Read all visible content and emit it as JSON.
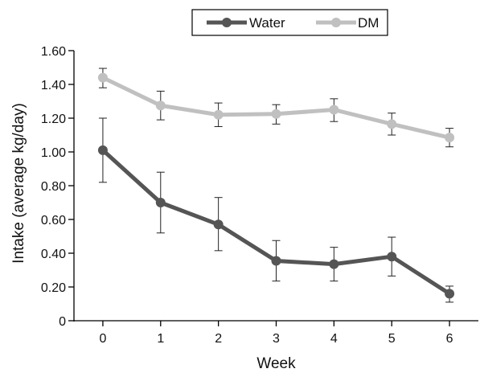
{
  "chart_data": {
    "type": "line",
    "title": "",
    "xlabel": "Week",
    "ylabel": "Intake (average kg/day)",
    "x": [
      0,
      1,
      2,
      3,
      4,
      5,
      6
    ],
    "x_tick_labels": [
      "0",
      "1",
      "2",
      "3",
      "4",
      "5",
      "6"
    ],
    "xlim": [
      -0.5,
      6.5
    ],
    "ylim": [
      0,
      1.6
    ],
    "y_ticks": [
      0,
      0.2,
      0.4,
      0.6,
      0.8,
      1.0,
      1.2,
      1.4,
      1.6
    ],
    "y_tick_labels": [
      "0",
      "0.20",
      "0.40",
      "0.60",
      "0.80",
      "1.00",
      "1.20",
      "1.40",
      "1.60"
    ],
    "grid": false,
    "legend_position": "top-center",
    "series": [
      {
        "name": "Water",
        "color": "#555555",
        "values": [
          1.01,
          0.7,
          0.57,
          0.355,
          0.335,
          0.38,
          0.16
        ],
        "error_upper": [
          1.2,
          0.88,
          0.73,
          0.475,
          0.435,
          0.495,
          0.205
        ],
        "error_lower": [
          0.82,
          0.52,
          0.415,
          0.235,
          0.235,
          0.265,
          0.11
        ]
      },
      {
        "name": "DM",
        "color": "#c0c0c0",
        "values": [
          1.44,
          1.275,
          1.22,
          1.225,
          1.25,
          1.165,
          1.085
        ],
        "error_upper": [
          1.495,
          1.36,
          1.29,
          1.28,
          1.315,
          1.23,
          1.14
        ],
        "error_lower": [
          1.38,
          1.19,
          1.15,
          1.165,
          1.18,
          1.1,
          1.03
        ]
      }
    ]
  }
}
